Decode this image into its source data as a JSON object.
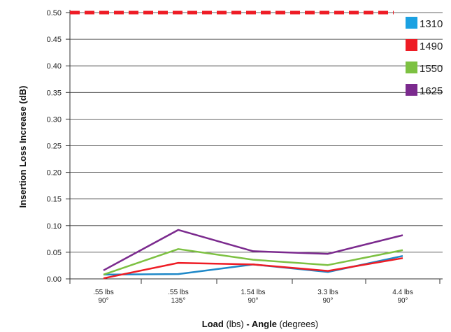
{
  "chart_data": {
    "type": "line",
    "ylabel": "Insertion Loss Increase (dB)",
    "xlabel_parts": [
      {
        "text": "Load",
        "bold": true
      },
      {
        "text": " (lbs) ",
        "bold": false
      },
      {
        "text": "- Angle",
        "bold": true
      },
      {
        "text": " (degrees)",
        "bold": false
      }
    ],
    "categories": [
      [
        ".55 lbs",
        "90°"
      ],
      [
        ".55 lbs",
        "135°"
      ],
      [
        "1.54 lbs",
        "90°"
      ],
      [
        "3.3 lbs",
        "90°"
      ],
      [
        "4.4 lbs",
        "90°"
      ]
    ],
    "ylim": [
      0,
      0.5
    ],
    "yticks": [
      "0.00",
      "0.05",
      "0.10",
      "0.15",
      "0.20",
      "0.25",
      "0.30",
      "0.35",
      "0.40",
      "0.45",
      "0.50"
    ],
    "grid": true,
    "legend_position": "top-right",
    "threshold": {
      "value": 0.5,
      "color": "#ee1c25",
      "style": "dashed"
    },
    "series": [
      {
        "name": "1310",
        "color": "#1e88c8",
        "values": [
          0.008,
          0.009,
          0.027,
          0.013,
          0.043
        ]
      },
      {
        "name": "1490",
        "color": "#ee1c25",
        "values": [
          0.001,
          0.03,
          0.027,
          0.015,
          0.039
        ]
      },
      {
        "name": "1550",
        "color": "#7dc142",
        "values": [
          0.008,
          0.056,
          0.036,
          0.026,
          0.054
        ]
      },
      {
        "name": "1625",
        "color": "#7b2a8e",
        "values": [
          0.016,
          0.092,
          0.052,
          0.047,
          0.082
        ]
      }
    ],
    "legend_swatch_colors": [
      "#1ba1e2",
      "#ee1c25",
      "#7dc142",
      "#7b2a8e"
    ]
  }
}
